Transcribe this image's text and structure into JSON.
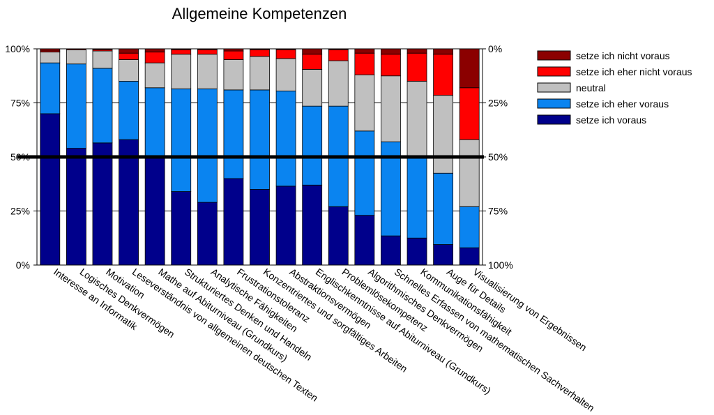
{
  "chart_data": {
    "type": "bar",
    "stacked": true,
    "title": "Allgemeine Kompetenzen",
    "xlabel": "",
    "ylabel": "",
    "ylim": [
      0,
      100
    ],
    "y_ticks_left": [
      "0%",
      "25%",
      "50%",
      "75%",
      "100%"
    ],
    "y_ticks_right": [
      "100%",
      "75%",
      "50%",
      "25%",
      "0%"
    ],
    "reference_line": 50,
    "legend_position": "top-right",
    "categories": [
      "Interesse an Informatik",
      "Logisches Denkvermögen",
      "Motivation",
      "Leseverständnis von allgemeinen deutschen Texten",
      "Mathe auf Abiturniveau (Grundkurs)",
      "Strukturiertes Denken und Handeln",
      "Analytische Fähigkeiten",
      "Frustrationstoleranz",
      "Konzentriertes und sorgfältiges Arbeiten",
      "Abstraktionsvermögen",
      "Englischkenntnisse auf Abiturniveau (Grundkurs)",
      "Problemlösekompetenz",
      "Algorithmisches Denkvermögen",
      "Schnelles Erfassen von mathematischen Sachverhalten",
      "Kommunikationsfähigkeit",
      "Auge für Details",
      "Visualisierung von Ergebnissen"
    ],
    "series": [
      {
        "name": "setze ich voraus",
        "color": "#00008b",
        "values": [
          70,
          54,
          56.5,
          58,
          50,
          34,
          29,
          40,
          35,
          36.5,
          37,
          27,
          23,
          13.5,
          12.5,
          9.5,
          8
        ]
      },
      {
        "name": "setze ich eher voraus",
        "color": "#0a84f0",
        "values": [
          23.5,
          39,
          34.5,
          27,
          32,
          47.5,
          52.5,
          41,
          46,
          44,
          36.5,
          46.5,
          39,
          43.5,
          37,
          33,
          19
        ]
      },
      {
        "name": "neutral",
        "color": "#c0c0c0",
        "values": [
          5,
          6.5,
          8,
          10,
          11.5,
          16,
          16,
          14,
          15.5,
          15,
          17,
          21,
          26,
          30.5,
          35.5,
          36,
          31
        ]
      },
      {
        "name": "setze ich eher nicht voraus",
        "color": "#ff0000",
        "values": [
          0.5,
          0,
          0.5,
          3,
          5,
          2,
          2,
          4,
          3,
          4,
          7,
          5,
          10,
          10,
          13,
          19,
          24
        ]
      },
      {
        "name": "setze ich nicht voraus",
        "color": "#8b0000",
        "values": [
          1,
          0.5,
          0.5,
          2,
          1.5,
          0.5,
          0.5,
          1,
          0.5,
          0.5,
          2.5,
          0.5,
          2,
          2.5,
          2,
          2.5,
          18
        ]
      }
    ],
    "legend_order": [
      "setze ich nicht voraus",
      "setze ich eher nicht voraus",
      "neutral",
      "setze ich eher voraus",
      "setze ich voraus"
    ]
  }
}
